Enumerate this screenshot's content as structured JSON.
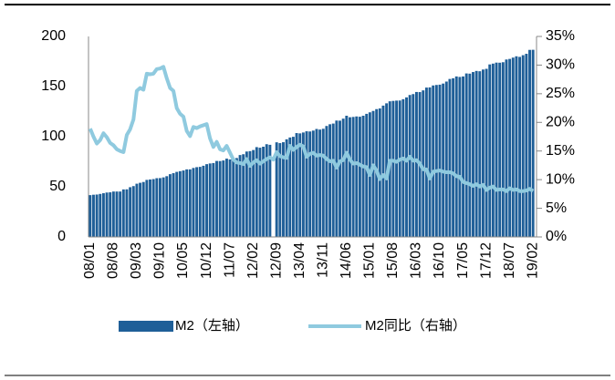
{
  "chart_data": {
    "type": "bar_line",
    "categories": [
      "08/01",
      null,
      null,
      null,
      null,
      null,
      null,
      "08/08",
      null,
      null,
      null,
      null,
      null,
      null,
      "09/03",
      null,
      null,
      null,
      null,
      null,
      null,
      "09/10",
      null,
      null,
      null,
      null,
      null,
      null,
      "10/05",
      null,
      null,
      null,
      null,
      null,
      null,
      "10/12",
      null,
      null,
      null,
      null,
      null,
      null,
      "11/07",
      null,
      null,
      null,
      null,
      null,
      null,
      "12/02",
      null,
      null,
      null,
      null,
      null,
      null,
      "12/09",
      null,
      null,
      null,
      null,
      null,
      null,
      "13/04",
      null,
      null,
      null,
      null,
      null,
      null,
      "13/11",
      null,
      null,
      null,
      null,
      null,
      null,
      "14/06",
      null,
      null,
      null,
      null,
      null,
      null,
      "15/01",
      null,
      null,
      null,
      null,
      null,
      null,
      "15/08",
      null,
      null,
      null,
      null,
      null,
      null,
      "16/03",
      null,
      null,
      null,
      null,
      null,
      null,
      "16/10",
      null,
      null,
      null,
      null,
      null,
      null,
      "17/05",
      null,
      null,
      null,
      null,
      null,
      null,
      "17/12",
      null,
      null,
      null,
      null,
      null,
      null,
      "18/07",
      null,
      null,
      null,
      null,
      null,
      null,
      "19/02"
    ],
    "series": [
      {
        "name": "M2（左轴）",
        "color": "#1f5f98",
        "kind": "bar",
        "axis": "y",
        "values": [
          41.7,
          42.1,
          42.3,
          42.9,
          43.6,
          44.3,
          44.5,
          45.3,
          45.3,
          45.3,
          47.4,
          47.5,
          49.6,
          50.7,
          53.1,
          54.0,
          54.8,
          56.9,
          57.3,
          57.7,
          58.6,
          58.7,
          59.4,
          60.6,
          62.6,
          63.6,
          64.9,
          65.6,
          66.3,
          67.4,
          67.4,
          68.8,
          69.6,
          69.9,
          71.0,
          72.6,
          73.3,
          73.7,
          75.8,
          75.7,
          76.3,
          78.1,
          77.3,
          78.1,
          78.7,
          81.7,
          82.5,
          85.2,
          85.6,
          86.7,
          89.6,
          89.0,
          90.0,
          92.5,
          91.9,
          null,
          94.4,
          93.6,
          94.5,
          97.4,
          99.2,
          99.9,
          103.6,
          103.3,
          104.2,
          105.4,
          105.2,
          106.1,
          107.7,
          107.1,
          107.9,
          110.7,
          112.4,
          113.1,
          116.1,
          116.0,
          118.0,
          120.9,
          119.4,
          119.7,
          120.2,
          119.9,
          120.9,
          122.8,
          124.3,
          125.7,
          127.5,
          128.2,
          131.0,
          133.3,
          135.3,
          135.7,
          136.0,
          136.1,
          137.4,
          139.2,
          141.6,
          142.5,
          144.6,
          144.5,
          146.2,
          149.0,
          149.2,
          151.1,
          151.6,
          151.9,
          153.0,
          155.0,
          157.6,
          158.3,
          160.1,
          159.6,
          160.1,
          163.1,
          162.9,
          164.5,
          165.6,
          165.3,
          167.0,
          167.7,
          172.1,
          172.9,
          173.9,
          173.8,
          174.3,
          177.0,
          177.6,
          178.9,
          180.2,
          179.6,
          181.3,
          182.7,
          186.6,
          186.7
        ]
      },
      {
        "name": "M2同比（右轴）",
        "color": "#8fcadf",
        "kind": "line",
        "axis": "y2",
        "values": [
          18.9,
          17.5,
          16.3,
          16.9,
          18.1,
          17.4,
          16.4,
          16.0,
          15.3,
          15.0,
          14.8,
          17.8,
          18.8,
          20.5,
          25.5,
          26.0,
          25.7,
          28.5,
          28.4,
          28.5,
          29.3,
          29.4,
          29.7,
          27.7,
          26.0,
          25.5,
          22.5,
          21.5,
          21.0,
          18.5,
          17.6,
          19.2,
          19.0,
          19.3,
          19.5,
          19.7,
          17.2,
          15.7,
          16.6,
          15.3,
          15.1,
          15.9,
          14.7,
          13.5,
          13.0,
          12.9,
          12.7,
          13.6,
          12.4,
          13.0,
          13.4,
          12.8,
          13.2,
          13.6,
          13.9,
          13.5,
          14.8,
          14.1,
          13.9,
          13.8,
          15.9,
          15.2,
          15.7,
          16.1,
          15.8,
          14.0,
          14.5,
          14.7,
          14.2,
          14.3,
          14.2,
          13.6,
          13.2,
          13.3,
          12.1,
          13.2,
          13.4,
          14.7,
          13.5,
          12.8,
          12.9,
          12.6,
          12.3,
          12.2,
          10.8,
          12.5,
          11.6,
          10.1,
          10.8,
          10.2,
          13.3,
          13.3,
          13.1,
          13.5,
          13.7,
          13.3,
          14.0,
          13.3,
          13.4,
          12.8,
          11.8,
          11.8,
          10.2,
          11.4,
          11.5,
          11.6,
          11.4,
          11.3,
          11.3,
          11.1,
          10.6,
          10.5,
          9.6,
          9.4,
          9.2,
          8.9,
          9.2,
          8.8,
          9.1,
          8.2,
          8.6,
          8.8,
          8.2,
          8.3,
          8.3,
          8.0,
          8.5,
          8.2,
          8.3,
          8.0,
          8.0,
          8.1,
          8.4,
          8.0
        ]
      }
    ],
    "ylim": [
      0,
      200
    ],
    "yticks": [
      0,
      50,
      100,
      150,
      200
    ],
    "y2lim": [
      0,
      35
    ],
    "y2ticks": [
      {
        "value": 0,
        "label": "0%"
      },
      {
        "value": 5,
        "label": "5%"
      },
      {
        "value": 10,
        "label": "10%"
      },
      {
        "value": 15,
        "label": "15%"
      },
      {
        "value": 20,
        "label": "20%"
      },
      {
        "value": 25,
        "label": "25%"
      },
      {
        "value": 30,
        "label": "30%"
      },
      {
        "value": 35,
        "label": "35%"
      }
    ],
    "legend": "bottom"
  }
}
